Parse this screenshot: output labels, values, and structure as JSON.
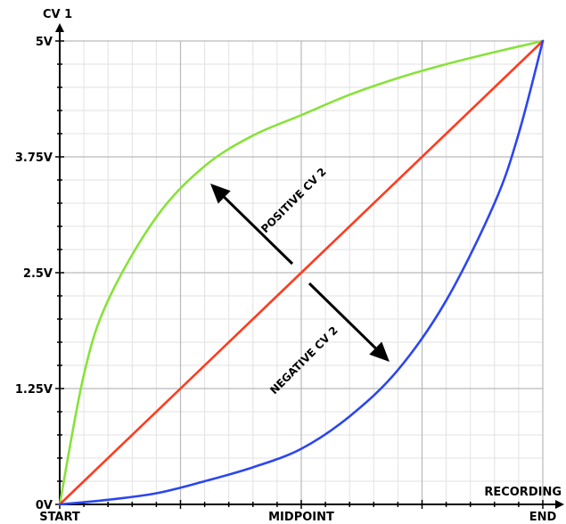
{
  "chart_data": {
    "type": "line",
    "ylabel": "CV 1",
    "xlabel": "RECORDING",
    "xlim": [
      0,
      1
    ],
    "ylim": [
      0,
      5
    ],
    "grid": true,
    "x_ticks": [
      {
        "value": 0,
        "label": "START"
      },
      {
        "value": 0.5,
        "label": "MIDPOINT"
      },
      {
        "value": 1,
        "label": "END"
      }
    ],
    "y_ticks": [
      {
        "value": 0,
        "label": "0V"
      },
      {
        "value": 1.25,
        "label": "1.25V"
      },
      {
        "value": 2.5,
        "label": "2.5V"
      },
      {
        "value": 3.75,
        "label": "3.75V"
      },
      {
        "value": 5,
        "label": "5V"
      }
    ],
    "series": [
      {
        "color": "#88e23a",
        "x": [
          0,
          0.05,
          0.1,
          0.2,
          0.3,
          0.4,
          0.5,
          0.6,
          0.7,
          0.8,
          0.9,
          1.0
        ],
        "y": [
          0,
          1.4,
          2.2,
          3.1,
          3.65,
          3.98,
          4.2,
          4.42,
          4.6,
          4.75,
          4.88,
          5.0
        ]
      },
      {
        "color": "#ff3b1f",
        "x": [
          0,
          1
        ],
        "y": [
          0,
          5
        ]
      },
      {
        "color": "#2b46f0",
        "x": [
          0,
          0.1,
          0.2,
          0.3,
          0.4,
          0.5,
          0.6,
          0.7,
          0.8,
          0.9,
          0.95,
          1.0
        ],
        "y": [
          0,
          0.05,
          0.12,
          0.25,
          0.4,
          0.6,
          0.95,
          1.45,
          2.2,
          3.25,
          4.0,
          5.0
        ]
      }
    ],
    "annotations": [
      {
        "text": "POSITIVE CV 2",
        "direction": "up-left"
      },
      {
        "text": "NEGATIVE CV 2",
        "direction": "down-right"
      }
    ]
  }
}
